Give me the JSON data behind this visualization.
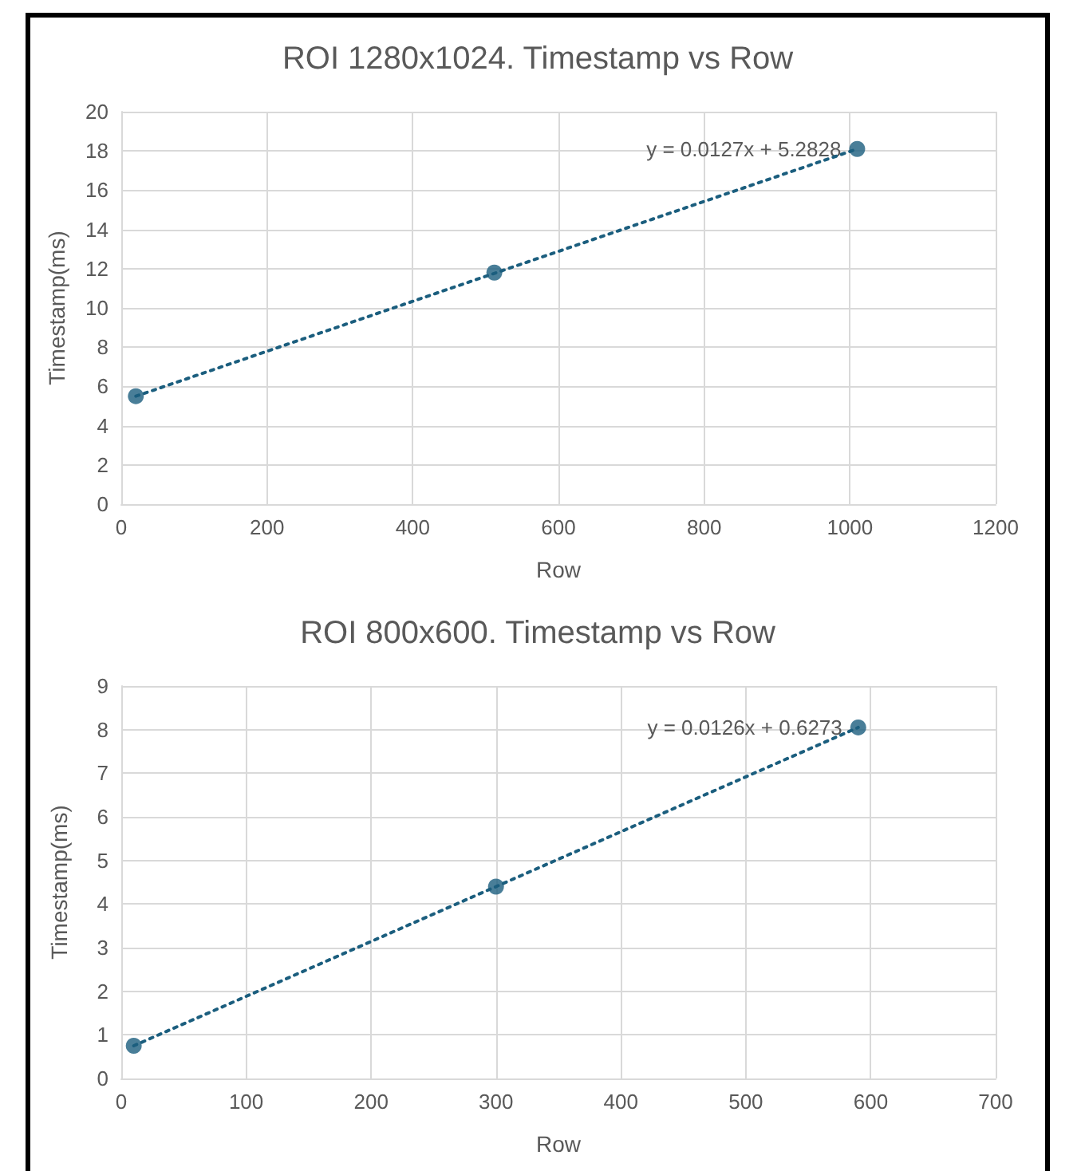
{
  "chart_data": [
    {
      "type": "scatter",
      "title": "ROI 1280x1024. Timestamp vs Row",
      "xlabel": "Row",
      "ylabel": "Timestamp(ms)",
      "xlim": [
        0,
        1200
      ],
      "xticks": [
        0,
        200,
        400,
        600,
        800,
        1000,
        1200
      ],
      "ylim": [
        0,
        20
      ],
      "yticks": [
        0,
        2,
        4,
        6,
        8,
        10,
        12,
        14,
        16,
        18,
        20
      ],
      "grid": true,
      "marker": "circle",
      "series": [
        {
          "type": "scatter",
          "color": "#1b5e7e",
          "x": [
            20,
            512,
            1010
          ],
          "values": [
            5.5,
            11.8,
            18.1
          ]
        },
        {
          "type": "line",
          "color": "#1b5e7e",
          "line_style": "dotted",
          "marker": "none",
          "x": [
            20,
            1010
          ],
          "values": [
            5.5,
            18.1
          ]
        }
      ],
      "annotations": [
        {
          "text": "y = 0.0127x + 5.2828",
          "x": 1010,
          "y": 18.1
        }
      ]
    },
    {
      "type": "scatter",
      "title": "ROI 800x600. Timestamp vs Row",
      "xlabel": "Row",
      "ylabel": "Timestamp(ms)",
      "xlim": [
        0,
        700
      ],
      "xticks": [
        0,
        100,
        200,
        300,
        400,
        500,
        600,
        700
      ],
      "ylim": [
        0,
        9
      ],
      "yticks": [
        0,
        1,
        2,
        3,
        4,
        5,
        6,
        7,
        8,
        9
      ],
      "grid": true,
      "marker": "circle",
      "series": [
        {
          "type": "scatter",
          "color": "#1b5e7e",
          "x": [
            10,
            300,
            590
          ],
          "values": [
            0.75,
            4.4,
            8.05
          ]
        },
        {
          "type": "line",
          "color": "#1b5e7e",
          "line_style": "dotted",
          "marker": "none",
          "x": [
            10,
            590
          ],
          "values": [
            0.75,
            8.05
          ]
        }
      ],
      "annotations": [
        {
          "text": "y = 0.0126x + 0.6273",
          "x": 590,
          "y": 8.05
        }
      ]
    }
  ]
}
